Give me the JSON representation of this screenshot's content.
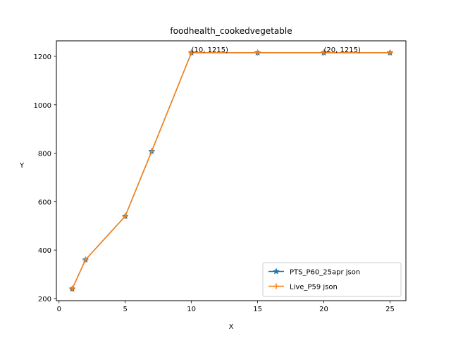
{
  "chart_data": {
    "type": "line",
    "title": "foodhealth_cookedvegetable",
    "xlabel": "X",
    "ylabel": "Y",
    "xlim": [
      -0.2,
      26.2
    ],
    "ylim": [
      191,
      1264
    ],
    "xticks": [
      0,
      5,
      10,
      15,
      20,
      25
    ],
    "yticks": [
      200,
      400,
      600,
      800,
      1000,
      1200
    ],
    "grid": false,
    "legend_position": "lower-right",
    "series": [
      {
        "name": "PTS_P60_25apr json",
        "color": "#1f77b4",
        "marker": "star",
        "x": [
          1,
          2,
          5,
          7,
          10,
          15,
          20,
          25
        ],
        "y": [
          240,
          360,
          540,
          808,
          1215,
          1215,
          1215,
          1215
        ]
      },
      {
        "name": "Live_P59 json",
        "color": "#ff7f0e",
        "marker": "plus",
        "x": [
          1,
          2,
          5,
          7,
          10,
          15,
          20,
          25
        ],
        "y": [
          240,
          360,
          540,
          808,
          1215,
          1215,
          1215,
          1215
        ]
      }
    ],
    "annotations": [
      {
        "x": 10,
        "y": 1215,
        "text": "(10, 1215)"
      },
      {
        "x": 20,
        "y": 1215,
        "text": "(20, 1215)"
      }
    ]
  }
}
